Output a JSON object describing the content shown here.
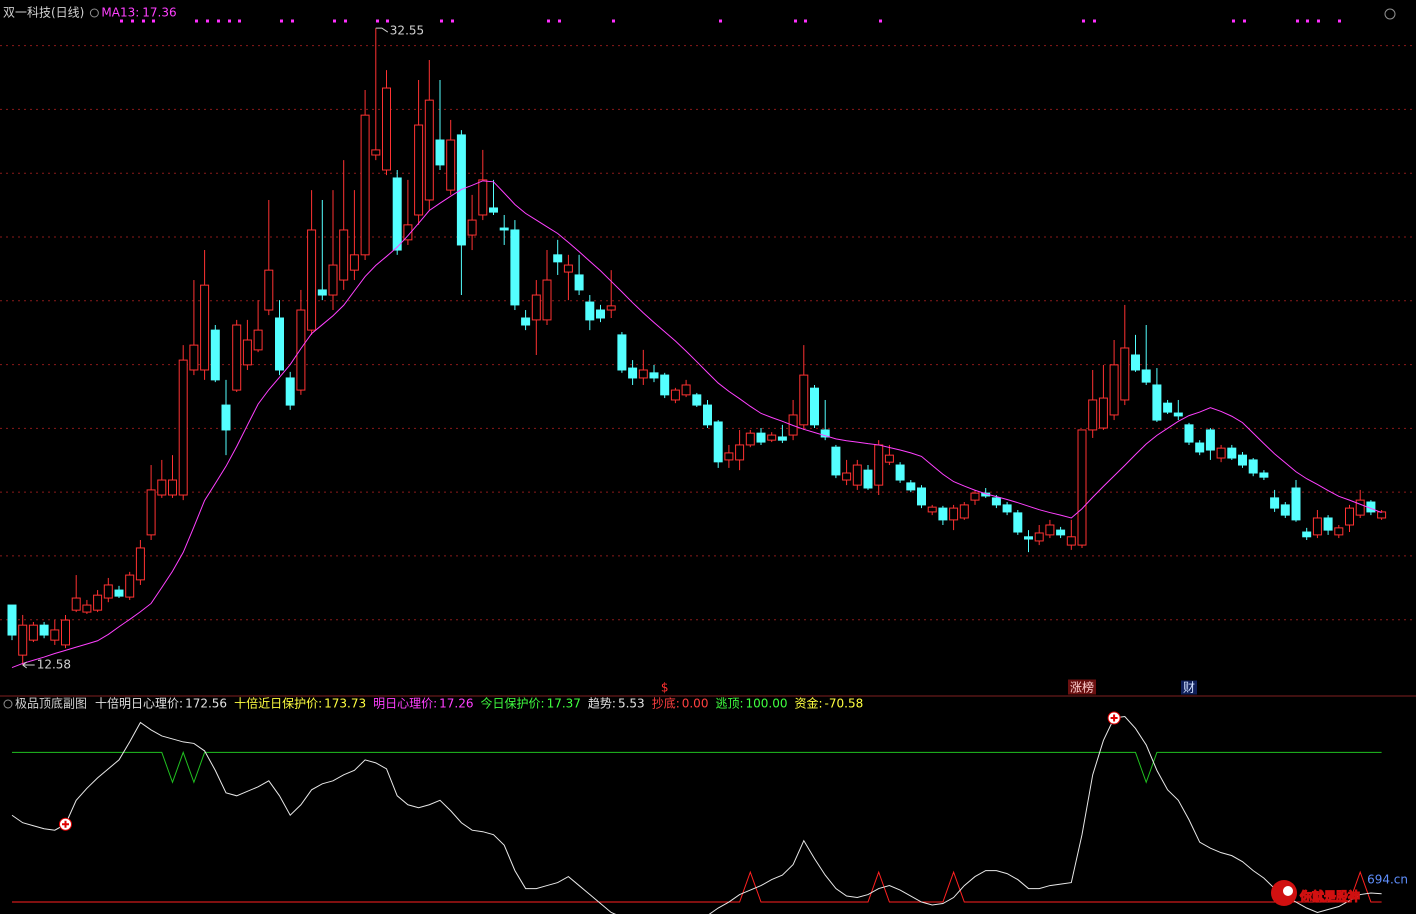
{
  "chart_data": [
    {
      "type": "candlestick",
      "title": "双一科技(日线)",
      "up_color": "#ff3232",
      "down_color": "#54ffff",
      "ylim": [
        11.64,
        33.43
      ],
      "grid_levels": [
        14,
        16,
        18,
        20,
        22,
        24,
        26,
        28,
        30,
        32
      ],
      "open": [
        14.46,
        12.89,
        13.36,
        13.83,
        13.36,
        13.21,
        14.3,
        14.24,
        14.3,
        14.68,
        14.93,
        14.71,
        15.25,
        16.66,
        17.91,
        17.91,
        17.91,
        21.83,
        21.83,
        23.08,
        20.73,
        21.2,
        21.99,
        22.46,
        23.71,
        23.46,
        21.58,
        21.2,
        23.08,
        24.34,
        24.18,
        24.65,
        24.96,
        25.44,
        28.57,
        28.1,
        27.85,
        25.91,
        26.69,
        27.16,
        29.04,
        27.47,
        29.2,
        26.06,
        26.69,
        26.91,
        26.28,
        26.22,
        23.46,
        23.4,
        23.4,
        25.44,
        24.9,
        24.81,
        23.96,
        23.71,
        23.71,
        22.93,
        21.89,
        21.58,
        21.74,
        21.67,
        20.89,
        21.05,
        21.05,
        20.73,
        20.2,
        19.01,
        19.01,
        19.48,
        19.85,
        19.63,
        19.73,
        19.79,
        20.11,
        21.26,
        19.95,
        19.41,
        18.38,
        18.22,
        18.69,
        18.22,
        18.94,
        18.85,
        18.29,
        18.13,
        17.38,
        17.5,
        17.13,
        17.19,
        17.75,
        17.97,
        17.82,
        17.6,
        17.35,
        16.6,
        16.47,
        16.66,
        16.81,
        16.34,
        16.34,
        19.95,
        20.01,
        20.42,
        20.89,
        22.3,
        21.83,
        21.36,
        20.79,
        20.48,
        20.11,
        19.54,
        19.95,
        19.07,
        19.38,
        19.16,
        19.01,
        18.6,
        17.82,
        17.6,
        18.13,
        16.75,
        16.66,
        17.19,
        16.66,
        16.97,
        17.28,
        17.69,
        17.19
      ],
      "high": [
        14.46,
        14.15,
        13.93,
        13.93,
        13.99,
        14.15,
        15.4,
        14.62,
        14.93,
        15.31,
        15.06,
        15.5,
        16.5,
        18.85,
        19.01,
        19.16,
        22.61,
        24.65,
        25.59,
        23.24,
        21.52,
        23.4,
        23.4,
        24.02,
        27.16,
        24.02,
        21.77,
        24.34,
        27.47,
        27.16,
        27.47,
        28.41,
        27.47,
        30.61,
        32.55,
        31.23,
        28.1,
        27.79,
        30.92,
        31.55,
        30.92,
        29.67,
        29.35,
        27.32,
        28.73,
        27.79,
        26.69,
        26.53,
        23.71,
        24.65,
        25.59,
        25.91,
        25.44,
        25.44,
        24.18,
        23.87,
        24.96,
        23.02,
        22.14,
        22.46,
        21.99,
        21.74,
        21.27,
        21.52,
        21.11,
        20.89,
        20.26,
        19.48,
        19.95,
        19.95,
        20.01,
        19.88,
        20.11,
        20.89,
        22.61,
        21.36,
        20.89,
        19.48,
        19.01,
        19.01,
        18.85,
        19.63,
        19.48,
        18.94,
        18.38,
        18.22,
        17.6,
        17.57,
        17.6,
        17.69,
        18.07,
        18.13,
        17.91,
        17.69,
        17.44,
        16.81,
        16.97,
        17.13,
        16.91,
        17.13,
        19.95,
        21.83,
        21.99,
        22.77,
        23.87,
        22.93,
        23.24,
        21.89,
        20.89,
        20.89,
        20.17,
        19.63,
        20.01,
        19.48,
        19.48,
        19.26,
        19.07,
        18.69,
        18.07,
        17.69,
        18.38,
        16.88,
        17.44,
        17.28,
        16.97,
        17.6,
        18.07,
        17.75,
        17.44
      ],
      "low": [
        13.36,
        12.58,
        13.3,
        13.42,
        13.21,
        13.11,
        14.24,
        14.18,
        14.24,
        14.55,
        14.68,
        14.62,
        15.09,
        16.5,
        17.82,
        17.82,
        17.75,
        21.67,
        21.52,
        21.45,
        19.16,
        21.14,
        21.83,
        22.39,
        23.55,
        21.67,
        20.58,
        21.05,
        22.93,
        24.02,
        23.71,
        24.34,
        24.65,
        25.28,
        28.41,
        27.94,
        25.44,
        25.75,
        26.38,
        26.85,
        28.1,
        27.32,
        24.18,
        25.59,
        26.53,
        26.69,
        25.75,
        23.71,
        23.08,
        22.3,
        23.24,
        24.81,
        24.02,
        24.18,
        23.08,
        23.33,
        23.46,
        21.74,
        21.36,
        21.36,
        21.45,
        20.95,
        20.79,
        20.98,
        20.67,
        20.01,
        18.76,
        18.76,
        18.69,
        19.41,
        19.48,
        19.57,
        19.54,
        19.63,
        19.95,
        20.01,
        19.63,
        18.44,
        18.22,
        18.07,
        18.07,
        17.91,
        18.85,
        18.29,
        18.0,
        17.5,
        17.28,
        16.97,
        16.81,
        17.13,
        17.6,
        17.82,
        17.5,
        17.28,
        16.66,
        16.12,
        16.34,
        16.56,
        16.56,
        16.19,
        16.25,
        19.7,
        19.95,
        20.26,
        20.73,
        21.77,
        21.36,
        20.2,
        20.45,
        20.26,
        19.48,
        19.16,
        19.01,
        18.94,
        19.01,
        18.76,
        18.5,
        18.38,
        17.38,
        17.19,
        17.07,
        16.5,
        16.56,
        16.66,
        16.56,
        16.75,
        17.19,
        17.28,
        17.13
      ],
      "close": [
        13.52,
        13.83,
        13.83,
        13.52,
        13.68,
        13.99,
        14.68,
        14.46,
        14.77,
        15.09,
        14.74,
        15.4,
        16.25,
        18.07,
        18.38,
        18.38,
        22.14,
        22.61,
        24.49,
        21.52,
        19.95,
        23.24,
        22.77,
        23.08,
        24.96,
        21.83,
        20.73,
        23.71,
        26.22,
        24.18,
        25.12,
        26.22,
        25.44,
        29.82,
        28.73,
        30.67,
        25.59,
        26.38,
        29.51,
        30.29,
        28.26,
        29.04,
        25.75,
        26.53,
        27.79,
        26.78,
        26.22,
        23.87,
        23.24,
        24.18,
        24.65,
        25.22,
        25.12,
        24.34,
        23.4,
        23.46,
        23.84,
        21.83,
        21.58,
        21.83,
        21.58,
        21.05,
        21.2,
        21.36,
        20.73,
        20.11,
        18.95,
        19.23,
        19.48,
        19.85,
        19.57,
        19.79,
        19.63,
        20.42,
        21.67,
        20.11,
        19.73,
        18.54,
        18.6,
        18.85,
        18.13,
        19.48,
        19.16,
        18.38,
        18.07,
        17.6,
        17.53,
        17.13,
        17.5,
        17.6,
        17.97,
        17.88,
        17.6,
        17.38,
        16.75,
        16.53,
        16.72,
        16.97,
        16.66,
        16.6,
        19.95,
        20.89,
        20.95,
        21.99,
        22.52,
        21.83,
        21.45,
        20.26,
        20.51,
        20.39,
        19.57,
        19.26,
        19.32,
        19.38,
        19.07,
        18.85,
        18.6,
        18.47,
        17.5,
        17.28,
        17.13,
        16.6,
        17.19,
        16.81,
        16.88,
        17.5,
        17.75,
        17.38,
        17.38
      ],
      "series": [
        {
          "name": "MA13:",
          "color": "#ff40ff",
          "values": [
            12.5,
            12.63,
            12.73,
            12.83,
            12.94,
            13.04,
            13.14,
            13.24,
            13.34,
            13.54,
            13.78,
            14.01,
            14.25,
            14.51,
            15.01,
            15.52,
            16.11,
            16.91,
            17.74,
            18.27,
            18.81,
            19.43,
            20.1,
            20.76,
            21.21,
            21.6,
            22.0,
            22.5,
            22.97,
            23.25,
            23.53,
            23.86,
            24.31,
            24.76,
            25.11,
            25.39,
            25.68,
            26.04,
            26.43,
            26.83,
            27.06,
            27.28,
            27.49,
            27.62,
            27.76,
            27.73,
            27.38,
            27.02,
            26.74,
            26.53,
            26.32,
            26.11,
            25.83,
            25.54,
            25.24,
            24.94,
            24.61,
            24.28,
            23.94,
            23.62,
            23.32,
            23.03,
            22.74,
            22.42,
            22.09,
            21.75,
            21.42,
            21.16,
            20.93,
            20.69,
            20.47,
            20.34,
            20.22,
            20.09,
            19.97,
            19.87,
            19.77,
            19.67,
            19.61,
            19.57,
            19.52,
            19.48,
            19.4,
            19.32,
            19.23,
            19.12,
            18.84,
            18.56,
            18.33,
            18.19,
            18.06,
            17.95,
            17.86,
            17.77,
            17.67,
            17.56,
            17.45,
            17.36,
            17.28,
            17.19,
            17.48,
            17.84,
            18.18,
            18.51,
            18.84,
            19.18,
            19.51,
            19.78,
            20.0,
            20.22,
            20.4,
            20.51,
            20.65,
            20.53,
            20.38,
            20.18,
            19.85,
            19.52,
            19.2,
            18.92,
            18.64,
            18.42,
            18.24,
            18.05,
            17.87,
            17.75,
            17.62,
            17.49,
            17.36
          ]
        }
      ],
      "events": [
        {
          "index": 61,
          "label": "$",
          "color": "#ff3030"
        },
        {
          "index": 100,
          "label": "涨榜",
          "color": "#ffd0d0",
          "background": "#6a1010"
        },
        {
          "index": 110,
          "label": "财",
          "color": "#d0e0ff",
          "background": "#10205a"
        }
      ]
    },
    {
      "type": "line",
      "title": "极品顶底副图",
      "ylim": [
        -8,
        127
      ],
      "legend": [
        {
          "label": "十倍明日心理价:",
          "value": 172.56,
          "color": "#e0e0e0"
        },
        {
          "label": "十倍近日保护价:",
          "value": 173.73,
          "color": "#ffff40"
        },
        {
          "label": "明日心理价:",
          "value": 17.26,
          "color": "#ff40ff"
        },
        {
          "label": "今日保护价:",
          "value": 17.37,
          "color": "#40ff40"
        },
        {
          "label": "趋势:",
          "value": 5.53,
          "color": "#e0e0e0"
        },
        {
          "label": "抄底:",
          "value": 0,
          "value_label": "0.00",
          "color": "#ff4040"
        },
        {
          "label": "逃顶:",
          "value": 100,
          "value_label": "100.00",
          "color": "#40ff40"
        },
        {
          "label": "资金:",
          "value": -70.58,
          "color": "#ffff40"
        }
      ],
      "series": [
        {
          "color": "#20c020",
          "values": [
            100,
            100,
            100,
            100,
            100,
            100,
            100,
            100,
            100,
            100,
            100,
            100,
            100,
            100,
            100,
            80,
            100,
            80,
            100,
            100,
            100,
            100,
            100,
            100,
            100,
            100,
            100,
            100,
            100,
            100,
            100,
            100,
            100,
            100,
            100,
            100,
            100,
            100,
            100,
            100,
            100,
            100,
            100,
            100,
            100,
            100,
            100,
            100,
            100,
            100,
            100,
            100,
            100,
            100,
            100,
            100,
            100,
            100,
            100,
            100,
            100,
            100,
            100,
            100,
            100,
            100,
            100,
            100,
            100,
            100,
            100,
            100,
            100,
            100,
            100,
            100,
            100,
            100,
            100,
            100,
            100,
            100,
            100,
            100,
            100,
            100,
            100,
            100,
            100,
            100,
            100,
            100,
            100,
            100,
            100,
            100,
            100,
            100,
            100,
            100,
            100,
            100,
            100,
            100,
            100,
            100,
            80,
            100,
            100,
            100,
            100,
            100,
            100,
            100,
            100,
            100,
            100,
            100,
            100,
            100,
            100,
            100,
            100,
            100,
            100,
            100,
            100,
            100,
            100
          ]
        },
        {
          "color": "#ff2020",
          "values": [
            0,
            0,
            0,
            0,
            0,
            0,
            0,
            0,
            0,
            0,
            0,
            0,
            0,
            0,
            0,
            0,
            0,
            0,
            0,
            0,
            0,
            0,
            0,
            0,
            0,
            0,
            0,
            0,
            0,
            0,
            0,
            0,
            0,
            0,
            0,
            0,
            0,
            0,
            0,
            0,
            0,
            0,
            0,
            0,
            0,
            0,
            0,
            0,
            0,
            0,
            0,
            0,
            0,
            0,
            0,
            0,
            0,
            0,
            0,
            0,
            0,
            0,
            0,
            0,
            0,
            0,
            0,
            0,
            0,
            20,
            0,
            0,
            0,
            0,
            0,
            0,
            0,
            0,
            0,
            0,
            0,
            20,
            0,
            0,
            0,
            0,
            0,
            0,
            20,
            0,
            0,
            0,
            0,
            0,
            0,
            0,
            0,
            0,
            0,
            0,
            0,
            0,
            0,
            0,
            0,
            0,
            0,
            0,
            0,
            0,
            0,
            0,
            0,
            0,
            0,
            0,
            0,
            0,
            0,
            0,
            0,
            0,
            0,
            0,
            0,
            0,
            20,
            0,
            0
          ]
        },
        {
          "color": "#e8e8e8",
          "values": [
            58,
            53,
            51,
            49,
            48,
            52,
            68,
            76,
            83,
            89,
            95,
            107,
            120,
            115,
            111,
            109,
            107,
            106,
            101,
            88,
            73,
            71,
            74,
            77,
            81,
            71,
            58,
            65,
            75,
            79,
            81,
            85,
            88,
            95,
            93,
            89,
            71,
            65,
            63,
            65,
            68,
            61,
            53,
            48,
            47,
            45,
            38,
            21,
            9,
            9,
            11,
            13,
            17,
            11,
            5,
            -1,
            -7,
            -10,
            -12,
            -13,
            -14,
            -14,
            -13,
            -12,
            -11,
            -9,
            -4,
            0,
            5,
            8,
            11,
            15,
            18,
            25,
            41,
            29,
            18,
            9,
            4,
            3,
            5,
            9,
            11,
            8,
            4,
            0,
            -2,
            -1,
            3,
            11,
            17,
            21,
            21,
            19,
            15,
            9,
            9,
            11,
            12,
            13,
            45,
            85,
            108,
            123,
            124,
            116,
            105,
            88,
            75,
            68,
            55,
            40,
            36,
            33,
            31,
            27,
            21,
            16,
            9,
            4,
            0,
            -4,
            -7,
            -5,
            -3,
            1,
            5,
            6,
            5.53
          ]
        }
      ],
      "signals": [
        5,
        103
      ]
    },
    {
      "type": "watermark",
      "text": "你就是股神",
      "site": "694.cn"
    }
  ]
}
